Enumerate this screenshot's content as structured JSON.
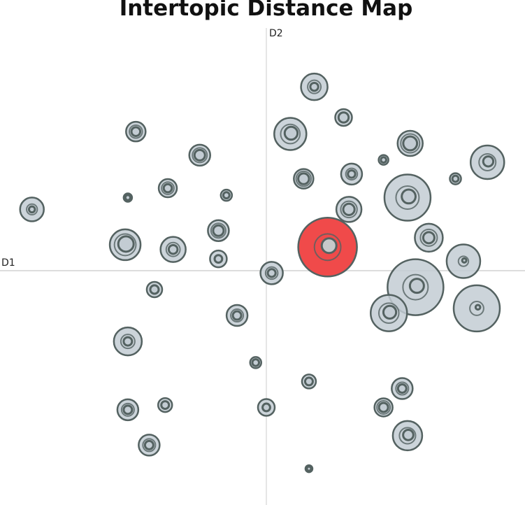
{
  "chart_data": {
    "type": "scatter",
    "title": "Intertopic Distance Map",
    "xlabel": "D1",
    "ylabel": "D2",
    "xlim": [
      -10,
      10
    ],
    "ylim": [
      -10,
      10
    ],
    "grid": false,
    "colors": {
      "bubble_fill": "#c3ccd3",
      "bubble_stroke": "#546261",
      "selected_fill": "#f04a4a",
      "axis_line": "#dddddd"
    },
    "selected_topic": 1,
    "points": [
      {
        "topic": 1,
        "x": 2.3,
        "y": 1.0,
        "size": 42,
        "ring": 0.25
      },
      {
        "topic": 2,
        "x": 5.6,
        "y": -0.7,
        "size": 40,
        "ring": 0.25
      },
      {
        "topic": 3,
        "x": 5.3,
        "y": 3.1,
        "size": 33,
        "ring": 0.3
      },
      {
        "topic": 4,
        "x": 7.9,
        "y": -1.6,
        "size": 33,
        "ring": 0.1
      },
      {
        "topic": 5,
        "x": 4.6,
        "y": -1.8,
        "size": 26,
        "ring": 0.35
      },
      {
        "topic": 6,
        "x": 7.4,
        "y": 0.4,
        "size": 24,
        "ring": 0.1
      },
      {
        "topic": 7,
        "x": 8.3,
        "y": 4.6,
        "size": 24,
        "ring": 0.3
      },
      {
        "topic": 8,
        "x": 0.9,
        "y": 5.8,
        "size": 23,
        "ring": 0.4
      },
      {
        "topic": 9,
        "x": -5.3,
        "y": 1.1,
        "size": 22,
        "ring": 0.5
      },
      {
        "topic": 10,
        "x": 6.1,
        "y": 1.4,
        "size": 20,
        "ring": 0.4
      },
      {
        "topic": 11,
        "x": -5.2,
        "y": -3.0,
        "size": 20,
        "ring": 0.3
      },
      {
        "topic": 12,
        "x": 5.3,
        "y": -7.0,
        "size": 21,
        "ring": 0.35
      },
      {
        "topic": 13,
        "x": -3.5,
        "y": 0.9,
        "size": 18,
        "ring": 0.35
      },
      {
        "topic": 14,
        "x": 1.8,
        "y": 7.8,
        "size": 19,
        "ring": 0.3
      },
      {
        "topic": 15,
        "x": 5.4,
        "y": 5.4,
        "size": 18,
        "ring": 0.55
      },
      {
        "topic": 16,
        "x": 3.1,
        "y": 2.6,
        "size": 18,
        "ring": 0.45
      },
      {
        "topic": 17,
        "x": -8.8,
        "y": 2.6,
        "size": 17,
        "ring": 0.25
      },
      {
        "topic": 18,
        "x": 0.2,
        "y": -0.1,
        "size": 16,
        "ring": 0.35
      },
      {
        "topic": 19,
        "x": 3.2,
        "y": 4.1,
        "size": 15,
        "ring": 0.35
      },
      {
        "topic": 20,
        "x": -1.8,
        "y": 1.7,
        "size": 15,
        "ring": 0.5
      },
      {
        "topic": 21,
        "x": -2.5,
        "y": 4.9,
        "size": 15,
        "ring": 0.5
      },
      {
        "topic": 22,
        "x": -1.1,
        "y": -1.9,
        "size": 15,
        "ring": 0.4
      },
      {
        "topic": 23,
        "x": -4.4,
        "y": -7.4,
        "size": 15,
        "ring": 0.4
      },
      {
        "topic": 24,
        "x": -5.2,
        "y": -5.9,
        "size": 15,
        "ring": 0.4
      },
      {
        "topic": 25,
        "x": 5.1,
        "y": -5.0,
        "size": 15,
        "ring": 0.4
      },
      {
        "topic": 26,
        "x": 1.4,
        "y": 3.9,
        "size": 14,
        "ring": 0.55
      },
      {
        "topic": 27,
        "x": -4.9,
        "y": 5.9,
        "size": 14,
        "ring": 0.45
      },
      {
        "topic": 28,
        "x": -3.7,
        "y": 3.5,
        "size": 13,
        "ring": 0.45
      },
      {
        "topic": 29,
        "x": -1.8,
        "y": 0.5,
        "size": 12,
        "ring": 0.45
      },
      {
        "topic": 30,
        "x": 4.4,
        "y": -5.8,
        "size": 13,
        "ring": 0.5
      },
      {
        "topic": 31,
        "x": 2.9,
        "y": 6.5,
        "size": 12,
        "ring": 0.6
      },
      {
        "topic": 32,
        "x": -4.2,
        "y": -0.8,
        "size": 11,
        "ring": 0.55
      },
      {
        "topic": 33,
        "x": 0.0,
        "y": -5.8,
        "size": 12,
        "ring": 0.45
      },
      {
        "topic": 34,
        "x": -3.8,
        "y": -5.7,
        "size": 10,
        "ring": 0.55
      },
      {
        "topic": 35,
        "x": 1.6,
        "y": -4.7,
        "size": 10,
        "ring": 0.55
      },
      {
        "topic": 36,
        "x": -0.4,
        "y": -3.9,
        "size": 8,
        "ring": 0.6
      },
      {
        "topic": 37,
        "x": -1.5,
        "y": 3.2,
        "size": 8,
        "ring": 0.55
      },
      {
        "topic": 38,
        "x": 7.1,
        "y": 3.9,
        "size": 8,
        "ring": 0.55
      },
      {
        "topic": 39,
        "x": 4.4,
        "y": 4.7,
        "size": 7,
        "ring": 0.55
      },
      {
        "topic": 40,
        "x": -5.2,
        "y": 3.1,
        "size": 6,
        "ring": 0.6
      },
      {
        "topic": 41,
        "x": 1.6,
        "y": -8.4,
        "size": 5,
        "ring": 0.6
      }
    ]
  }
}
